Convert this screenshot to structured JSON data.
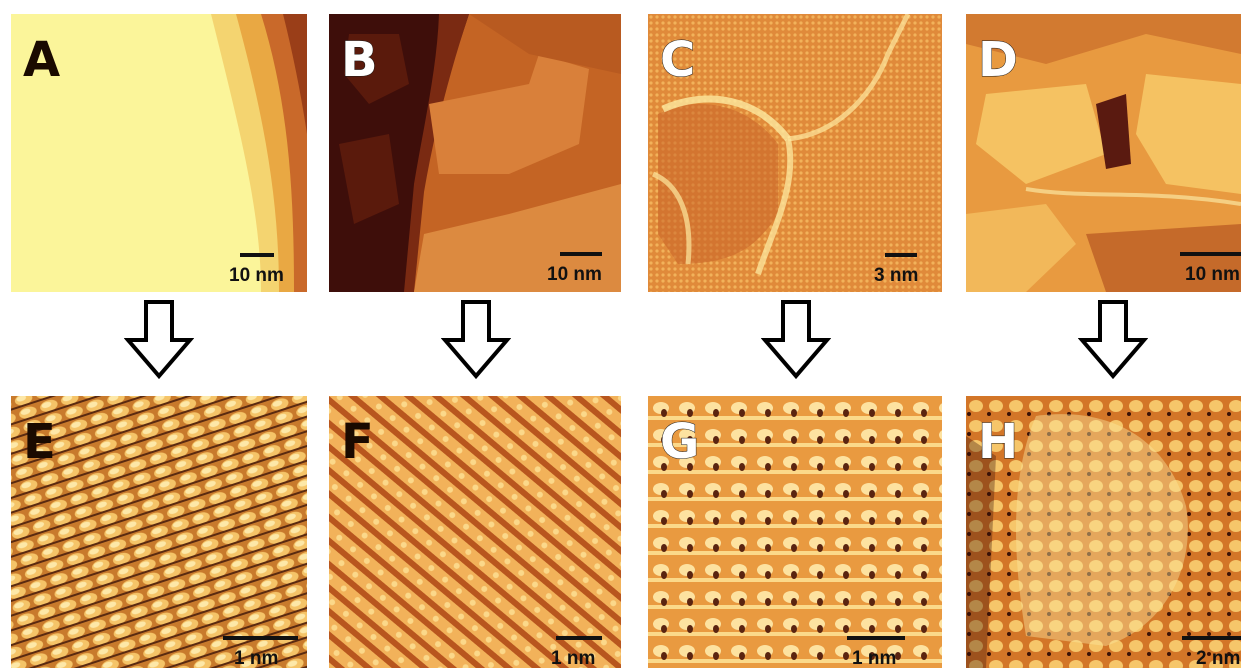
{
  "panels": [
    {
      "label": "A",
      "scale": "10 nm"
    },
    {
      "label": "B",
      "scale": "10 nm"
    },
    {
      "label": "C",
      "scale": "3 nm"
    },
    {
      "label": "D",
      "scale": "10 nm"
    },
    {
      "label": "E",
      "scale": "1 nm"
    },
    {
      "label": "F",
      "scale": "1 nm"
    },
    {
      "label": "G",
      "scale": "1 nm"
    },
    {
      "label": "H",
      "scale": "2 nm"
    }
  ],
  "arrows": [
    "down-arrow-icon",
    "down-arrow-icon",
    "down-arrow-icon",
    "down-arrow-icon"
  ]
}
